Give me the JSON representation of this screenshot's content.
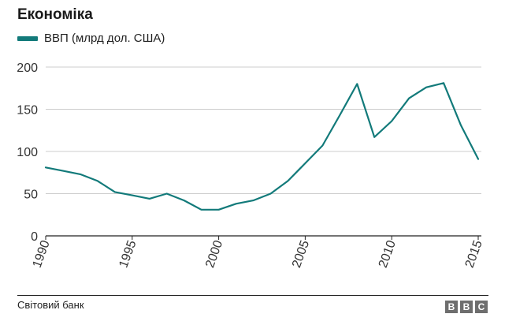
{
  "title": "Економіка",
  "legend_label": "ВВП (млрд дол. США)",
  "source": "Світовий банк",
  "logo": [
    "B",
    "B",
    "C"
  ],
  "colors": {
    "line": "#127a7a",
    "grid": "#cccccc",
    "axis": "#222222"
  },
  "chart_data": {
    "type": "line",
    "title": "Економіка",
    "xlabel": "",
    "ylabel": "",
    "xlim": [
      1990,
      2015
    ],
    "ylim": [
      0,
      200
    ],
    "y_ticks": [
      0,
      50,
      100,
      150,
      200
    ],
    "x_ticks": [
      1990,
      1995,
      2000,
      2005,
      2010,
      2015
    ],
    "series": [
      {
        "name": "ВВП (млрд дол. США)",
        "x": [
          1990,
          1991,
          1992,
          1993,
          1994,
          1995,
          1996,
          1997,
          1998,
          1999,
          2000,
          2001,
          2002,
          2003,
          2004,
          2005,
          2006,
          2007,
          2008,
          2009,
          2010,
          2011,
          2012,
          2013,
          2014,
          2015
        ],
        "values": [
          81,
          77,
          73,
          65,
          52,
          48,
          44,
          50,
          42,
          31,
          31,
          38,
          42,
          50,
          65,
          86,
          107,
          143,
          180,
          117,
          136,
          163,
          176,
          181,
          131,
          91
        ]
      }
    ]
  }
}
